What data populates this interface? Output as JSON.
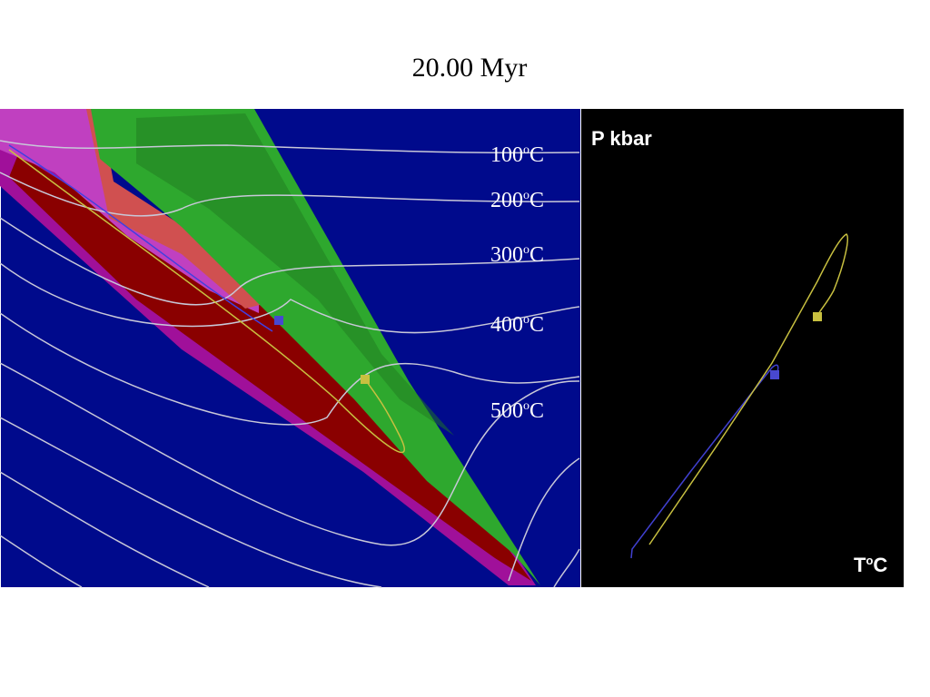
{
  "title": "20.00 Myr",
  "model_panel": {
    "isotherm_labels": [
      {
        "number": "100",
        "sup": "o",
        "unit": "C"
      },
      {
        "number": "200",
        "sup": "o",
        "unit": "C"
      },
      {
        "number": "300",
        "sup": "o",
        "unit": "C"
      },
      {
        "number": "400",
        "sup": "o",
        "unit": "C"
      },
      {
        "number": "500",
        "sup": "o",
        "unit": "C"
      }
    ]
  },
  "pt_panel": {
    "y_label": "P kbar",
    "x_label": {
      "symbol": "T",
      "sup": "o",
      "unit": "C"
    }
  }
}
